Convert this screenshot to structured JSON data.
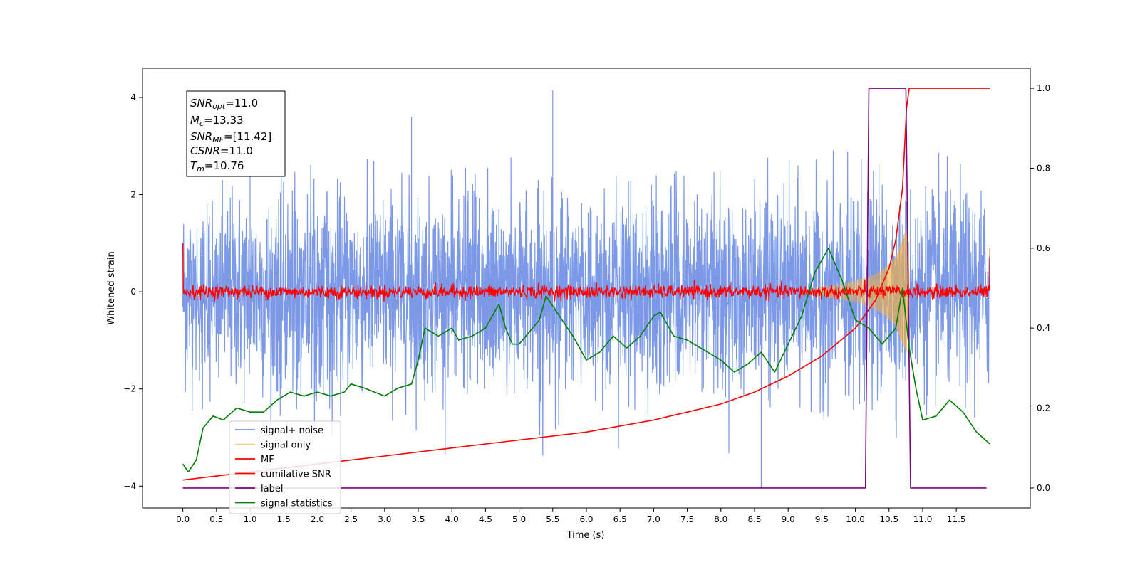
{
  "chart_data": {
    "type": "line",
    "title": "",
    "xlabel": "Time (s)",
    "ylabel": "Whitened strain",
    "ylabel_right": "",
    "xlim": [
      -0.6,
      12.6
    ],
    "ylim": [
      -4.45,
      4.6
    ],
    "ylim_right": [
      -0.05,
      1.05
    ],
    "grid": false,
    "legend_position": "lower-left",
    "x_ticks": [
      "0.0",
      "0.5",
      "1.0",
      "1.5",
      "2.0",
      "2.5",
      "3.0",
      "3.5",
      "4.0",
      "4.5",
      "5.0",
      "5.5",
      "6.0",
      "6.5",
      "7.0",
      "7.5",
      "8.0",
      "8.5",
      "9.0",
      "9.5",
      "10.0",
      "10.5",
      "11.0",
      "11.5"
    ],
    "y_ticks": [
      "-4",
      "-2",
      "0",
      "2",
      "4"
    ],
    "y_right_ticks": [
      "0.0",
      "0.2",
      "0.4",
      "0.6",
      "0.8",
      "1.0"
    ],
    "textbox_lines": [
      "SNRopt=11.0",
      "Mc=13.33",
      "SNRMF=[11.42]",
      "CSNR=11.0",
      "Tm=10.76"
    ],
    "series": [
      {
        "name": "signal+ noise",
        "color": "#7593e6",
        "axis": "left",
        "x_range": [
          0.0,
          12.0
        ],
        "amplitude_typical": 1.0,
        "envelope_max": [
          [
            0.0,
            2.3
          ],
          [
            1.0,
            2.8
          ],
          [
            2.0,
            2.7
          ],
          [
            3.0,
            2.8
          ],
          [
            4.0,
            2.6
          ],
          [
            5.0,
            3.3
          ],
          [
            5.5,
            4.15
          ],
          [
            6.0,
            2.8
          ],
          [
            7.0,
            2.5
          ],
          [
            8.0,
            2.7
          ],
          [
            9.0,
            3.0
          ],
          [
            10.0,
            2.9
          ],
          [
            11.0,
            3.2
          ],
          [
            12.0,
            2.9
          ]
        ],
        "envelope_min": [
          [
            0.0,
            -2.5
          ],
          [
            1.0,
            -3.1
          ],
          [
            2.0,
            -3.0
          ],
          [
            3.0,
            -3.2
          ],
          [
            4.0,
            -3.5
          ],
          [
            5.0,
            -3.4
          ],
          [
            6.0,
            -3.5
          ],
          [
            7.0,
            -3.3
          ],
          [
            8.0,
            -3.3
          ],
          [
            8.6,
            -4.05
          ],
          [
            9.0,
            -3.3
          ],
          [
            10.0,
            -3.2
          ],
          [
            11.0,
            -3.5
          ],
          [
            12.0,
            -3.4
          ]
        ]
      },
      {
        "name": "signal only",
        "color": "#f5b041",
        "axis": "left",
        "chirp_envelope": [
          [
            9.2,
            0.03
          ],
          [
            9.5,
            0.1
          ],
          [
            9.8,
            0.15
          ],
          [
            10.0,
            0.22
          ],
          [
            10.2,
            0.3
          ],
          [
            10.4,
            0.45
          ],
          [
            10.6,
            0.7
          ],
          [
            10.7,
            1.1
          ],
          [
            10.76,
            1.3
          ],
          [
            10.8,
            0.5
          ],
          [
            10.85,
            0.05
          ]
        ]
      },
      {
        "name": "MF",
        "color": "#ff0000",
        "axis": "left",
        "x_range": [
          0.0,
          12.0
        ],
        "start_value": 1.0,
        "end_value": 0.9,
        "amplitude_typical": 0.1
      },
      {
        "name": "cumilative SNR",
        "color": "#ff0000",
        "axis": "right",
        "points": [
          [
            0.0,
            0.02
          ],
          [
            0.5,
            0.03
          ],
          [
            1.0,
            0.04
          ],
          [
            2.0,
            0.06
          ],
          [
            3.0,
            0.08
          ],
          [
            4.0,
            0.1
          ],
          [
            5.0,
            0.12
          ],
          [
            6.0,
            0.14
          ],
          [
            7.0,
            0.17
          ],
          [
            7.5,
            0.19
          ],
          [
            8.0,
            0.21
          ],
          [
            8.5,
            0.24
          ],
          [
            9.0,
            0.28
          ],
          [
            9.5,
            0.33
          ],
          [
            10.0,
            0.4
          ],
          [
            10.3,
            0.47
          ],
          [
            10.5,
            0.55
          ],
          [
            10.6,
            0.62
          ],
          [
            10.7,
            0.75
          ],
          [
            10.76,
            0.95
          ],
          [
            10.8,
            1.0
          ],
          [
            12.0,
            1.0
          ]
        ]
      },
      {
        "name": "label",
        "color": "#800080",
        "axis": "right",
        "points": [
          [
            0.0,
            0.0
          ],
          [
            10.15,
            0.0
          ],
          [
            10.2,
            1.0
          ],
          [
            10.75,
            1.0
          ],
          [
            10.82,
            0.0
          ],
          [
            11.95,
            0.0
          ]
        ]
      },
      {
        "name": "signal statistics",
        "color": "#008000",
        "axis": "right",
        "points": [
          [
            0.0,
            0.06
          ],
          [
            0.08,
            0.04
          ],
          [
            0.2,
            0.07
          ],
          [
            0.3,
            0.15
          ],
          [
            0.45,
            0.18
          ],
          [
            0.6,
            0.17
          ],
          [
            0.8,
            0.2
          ],
          [
            1.0,
            0.19
          ],
          [
            1.2,
            0.19
          ],
          [
            1.4,
            0.22
          ],
          [
            1.6,
            0.24
          ],
          [
            1.8,
            0.23
          ],
          [
            2.0,
            0.24
          ],
          [
            2.2,
            0.23
          ],
          [
            2.4,
            0.24
          ],
          [
            2.5,
            0.26
          ],
          [
            2.7,
            0.25
          ],
          [
            3.0,
            0.23
          ],
          [
            3.2,
            0.25
          ],
          [
            3.4,
            0.26
          ],
          [
            3.5,
            0.32
          ],
          [
            3.6,
            0.4
          ],
          [
            3.8,
            0.38
          ],
          [
            4.0,
            0.4
          ],
          [
            4.1,
            0.37
          ],
          [
            4.3,
            0.38
          ],
          [
            4.5,
            0.4
          ],
          [
            4.7,
            0.46
          ],
          [
            4.8,
            0.4
          ],
          [
            4.9,
            0.36
          ],
          [
            5.0,
            0.36
          ],
          [
            5.2,
            0.4
          ],
          [
            5.3,
            0.42
          ],
          [
            5.4,
            0.48
          ],
          [
            5.6,
            0.43
          ],
          [
            5.8,
            0.38
          ],
          [
            6.0,
            0.32
          ],
          [
            6.2,
            0.34
          ],
          [
            6.4,
            0.38
          ],
          [
            6.6,
            0.35
          ],
          [
            6.8,
            0.38
          ],
          [
            7.0,
            0.43
          ],
          [
            7.1,
            0.44
          ],
          [
            7.3,
            0.38
          ],
          [
            7.5,
            0.37
          ],
          [
            7.7,
            0.35
          ],
          [
            8.0,
            0.32
          ],
          [
            8.2,
            0.29
          ],
          [
            8.4,
            0.31
          ],
          [
            8.6,
            0.34
          ],
          [
            8.8,
            0.29
          ],
          [
            9.0,
            0.36
          ],
          [
            9.2,
            0.43
          ],
          [
            9.4,
            0.54
          ],
          [
            9.6,
            0.6
          ],
          [
            9.8,
            0.52
          ],
          [
            10.0,
            0.42
          ],
          [
            10.2,
            0.4
          ],
          [
            10.4,
            0.36
          ],
          [
            10.6,
            0.4
          ],
          [
            10.7,
            0.5
          ],
          [
            10.8,
            0.35
          ],
          [
            10.9,
            0.25
          ],
          [
            11.0,
            0.17
          ],
          [
            11.2,
            0.18
          ],
          [
            11.4,
            0.22
          ],
          [
            11.6,
            0.19
          ],
          [
            11.8,
            0.14
          ],
          [
            12.0,
            0.11
          ]
        ]
      }
    ]
  }
}
